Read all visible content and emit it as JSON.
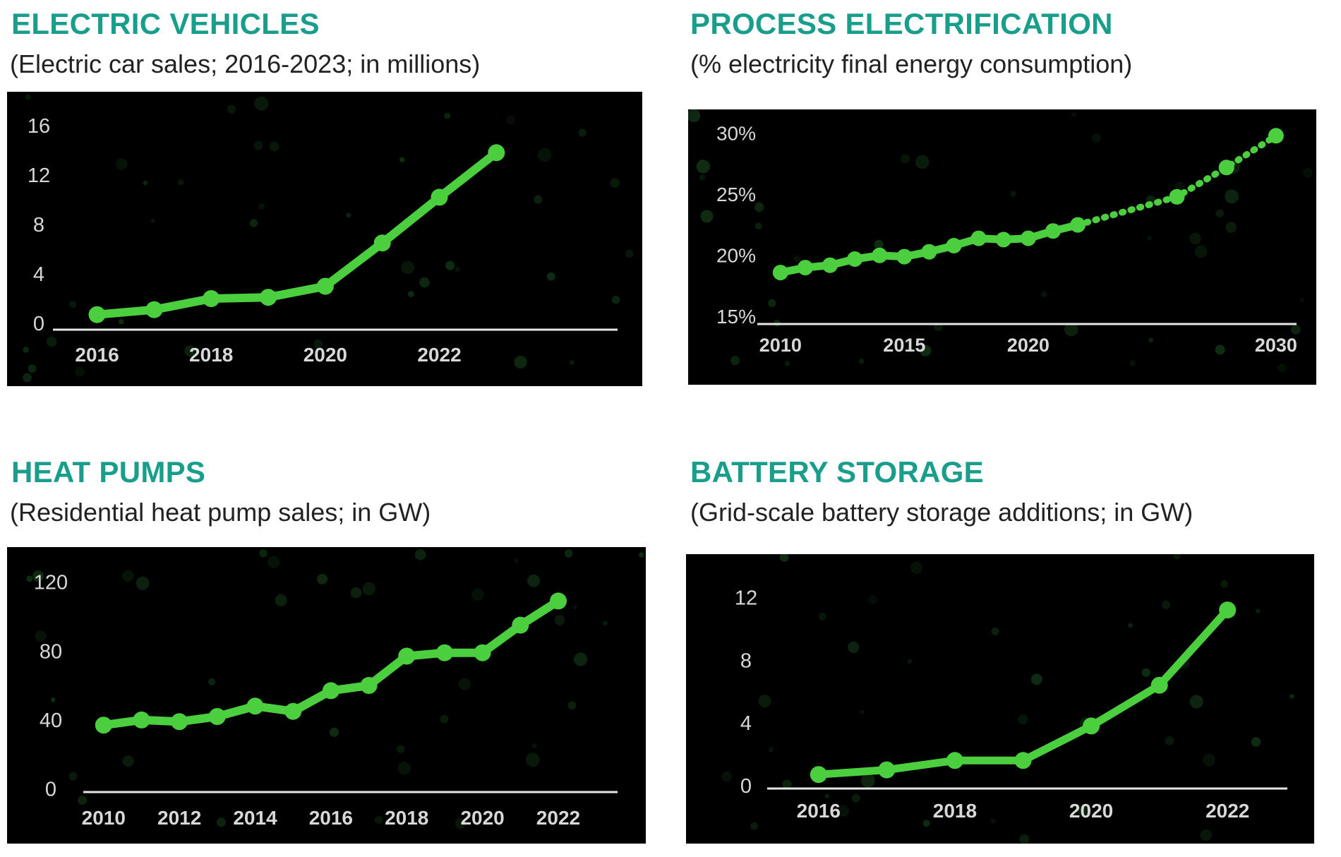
{
  "accent_color": "#1a9e8c",
  "line_color": "#4ccf3e",
  "chart_data": [
    {
      "id": "ev",
      "type": "line",
      "title": "ELECTRIC VEHICLES",
      "subtitle": "(Electric car sales; 2016-2023; in millions)",
      "x": [
        2016,
        2017,
        2018,
        2019,
        2020,
        2021,
        2022,
        2023
      ],
      "series": [
        {
          "values": [
            0.7,
            1.1,
            2.0,
            2.1,
            3.0,
            6.5,
            10.2,
            13.8
          ]
        }
      ],
      "xlim": [
        2015.35,
        2025.0
      ],
      "ylim": [
        -0.4,
        17.3
      ],
      "yticks": [
        0,
        4,
        8,
        12,
        16
      ],
      "ytick_labels": [
        "0",
        "4",
        "8",
        "12",
        "16"
      ],
      "xticks": [
        2016,
        2018,
        2020,
        2022
      ],
      "xtick_labels": [
        "2016",
        "2018",
        "2020",
        "2022"
      ],
      "grid": false
    },
    {
      "id": "process",
      "type": "line",
      "title": "PROCESS ELECTRIFICATION",
      "subtitle": "(% electricity final energy consumption)",
      "x": [
        2010,
        2011,
        2012,
        2013,
        2014,
        2015,
        2016,
        2017,
        2018,
        2019,
        2020,
        2021,
        2022
      ],
      "series": [
        {
          "values": [
            18.6,
            19.0,
            19.2,
            19.7,
            20.0,
            19.9,
            20.3,
            20.8,
            21.4,
            21.3,
            21.4,
            22.0,
            22.5
          ]
        },
        {
          "style": "projected",
          "x": [
            2022,
            2026,
            2028,
            2030
          ],
          "values": [
            22.5,
            24.8,
            27.2,
            29.8
          ]
        }
      ],
      "xlim": [
        2009.35,
        2031.0
      ],
      "ylim": [
        14.5,
        30.8
      ],
      "yticks": [
        15,
        20,
        25,
        30
      ],
      "ytick_labels": [
        "15%",
        "20%",
        "25%",
        "30%"
      ],
      "xticks": [
        2010,
        2015,
        2020,
        2030
      ],
      "xtick_labels": [
        "2010",
        "2015",
        "2020",
        "2030"
      ],
      "grid": false
    },
    {
      "id": "heatpumps",
      "type": "line",
      "title": "HEAT PUMPS",
      "subtitle": "(Residential heat pump sales; in GW)",
      "x": [
        2010,
        2011,
        2012,
        2013,
        2014,
        2015,
        2016,
        2017,
        2018,
        2019,
        2020,
        2021,
        2022
      ],
      "series": [
        {
          "values": [
            37,
            40,
            39,
            42,
            48,
            45,
            57,
            60,
            77,
            79,
            79,
            95,
            109
          ]
        }
      ],
      "xlim": [
        2009.65,
        2023.1
      ],
      "ylim": [
        -1,
        128
      ],
      "yticks": [
        0,
        40,
        80,
        120
      ],
      "ytick_labels": [
        "0",
        "40",
        "80",
        "120"
      ],
      "xticks": [
        2010,
        2012,
        2014,
        2016,
        2018,
        2020,
        2022
      ],
      "xtick_labels": [
        "2010",
        "2012",
        "2014",
        "2016",
        "2018",
        "2020",
        "2022"
      ],
      "grid": false
    },
    {
      "id": "battery",
      "type": "line",
      "title": "BATTERY STORAGE",
      "subtitle": "(Grid-scale battery storage additions; in GW)",
      "x": [
        2016,
        2017,
        2018,
        2019,
        2020,
        2021,
        2022
      ],
      "series": [
        {
          "values": [
            0.7,
            1.0,
            1.6,
            1.6,
            3.8,
            6.4,
            11.2
          ]
        }
      ],
      "xlim": [
        2015.35,
        2022.65
      ],
      "ylim": [
        -0.1,
        13.5
      ],
      "yticks": [
        0,
        4,
        8,
        12
      ],
      "ytick_labels": [
        "0",
        "4",
        "8",
        "12"
      ],
      "xticks": [
        2016,
        2018,
        2020,
        2022
      ],
      "xtick_labels": [
        "2016",
        "2018",
        "2020",
        "2022"
      ],
      "grid": false
    }
  ]
}
